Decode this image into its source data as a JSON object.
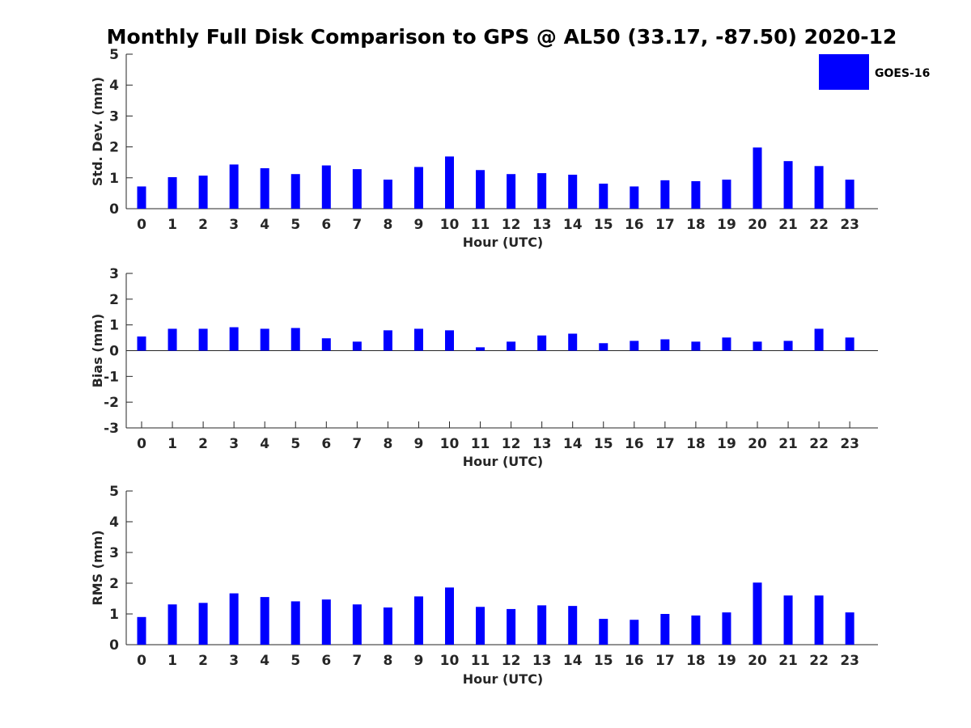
{
  "title": "Monthly Full Disk Comparison to GPS @ AL50 (33.17, -87.50) 2020-12",
  "legend": {
    "label": "GOES-16",
    "color": "#0000ff"
  },
  "chart_data": [
    {
      "type": "bar",
      "xlabel": "Hour (UTC)",
      "ylabel": "Std. Dev. (mm)",
      "categories": [
        "0",
        "1",
        "2",
        "3",
        "4",
        "5",
        "6",
        "7",
        "8",
        "9",
        "10",
        "11",
        "12",
        "13",
        "14",
        "15",
        "16",
        "17",
        "18",
        "19",
        "20",
        "21",
        "22",
        "23"
      ],
      "series": [
        {
          "name": "GOES-16",
          "color": "#0000ff",
          "values": [
            0.72,
            1.02,
            1.07,
            1.43,
            1.31,
            1.12,
            1.4,
            1.28,
            0.94,
            1.35,
            1.69,
            1.25,
            1.12,
            1.15,
            1.1,
            0.81,
            0.72,
            0.92,
            0.89,
            0.94,
            1.98,
            1.54,
            1.38,
            0.94
          ]
        }
      ],
      "ylim": [
        0,
        5
      ],
      "yticks": [
        "0",
        "1",
        "2",
        "3",
        "4",
        "5"
      ],
      "legend": "top-right"
    },
    {
      "type": "bar",
      "xlabel": "Hour (UTC)",
      "ylabel": "Bias (mm)",
      "categories": [
        "0",
        "1",
        "2",
        "3",
        "4",
        "5",
        "6",
        "7",
        "8",
        "9",
        "10",
        "11",
        "12",
        "13",
        "14",
        "15",
        "16",
        "17",
        "18",
        "19",
        "20",
        "21",
        "22",
        "23"
      ],
      "series": [
        {
          "name": "GOES-16",
          "color": "#0000ff",
          "values": [
            0.55,
            0.85,
            0.85,
            0.91,
            0.85,
            0.88,
            0.48,
            0.35,
            0.79,
            0.85,
            0.79,
            0.13,
            0.35,
            0.59,
            0.66,
            0.29,
            0.38,
            0.44,
            0.35,
            0.51,
            0.35,
            0.38,
            0.85,
            0.51
          ]
        }
      ],
      "ylim": [
        -3,
        3
      ],
      "yticks": [
        "-3",
        "-2",
        "-1",
        "0",
        "1",
        "2",
        "3"
      ],
      "zero_line": true
    },
    {
      "type": "bar",
      "xlabel": "Hour (UTC)",
      "ylabel": "RMS (mm)",
      "categories": [
        "0",
        "1",
        "2",
        "3",
        "4",
        "5",
        "6",
        "7",
        "8",
        "9",
        "10",
        "11",
        "12",
        "13",
        "14",
        "15",
        "16",
        "17",
        "18",
        "19",
        "20",
        "21",
        "22",
        "23"
      ],
      "series": [
        {
          "name": "GOES-16",
          "color": "#0000ff",
          "values": [
            0.9,
            1.31,
            1.36,
            1.67,
            1.55,
            1.41,
            1.47,
            1.31,
            1.21,
            1.57,
            1.86,
            1.23,
            1.16,
            1.28,
            1.26,
            0.84,
            0.81,
            1.0,
            0.95,
            1.05,
            2.02,
            1.6,
            1.6,
            1.05
          ]
        }
      ],
      "ylim": [
        0,
        5
      ],
      "yticks": [
        "0",
        "1",
        "2",
        "3",
        "4",
        "5"
      ]
    }
  ]
}
